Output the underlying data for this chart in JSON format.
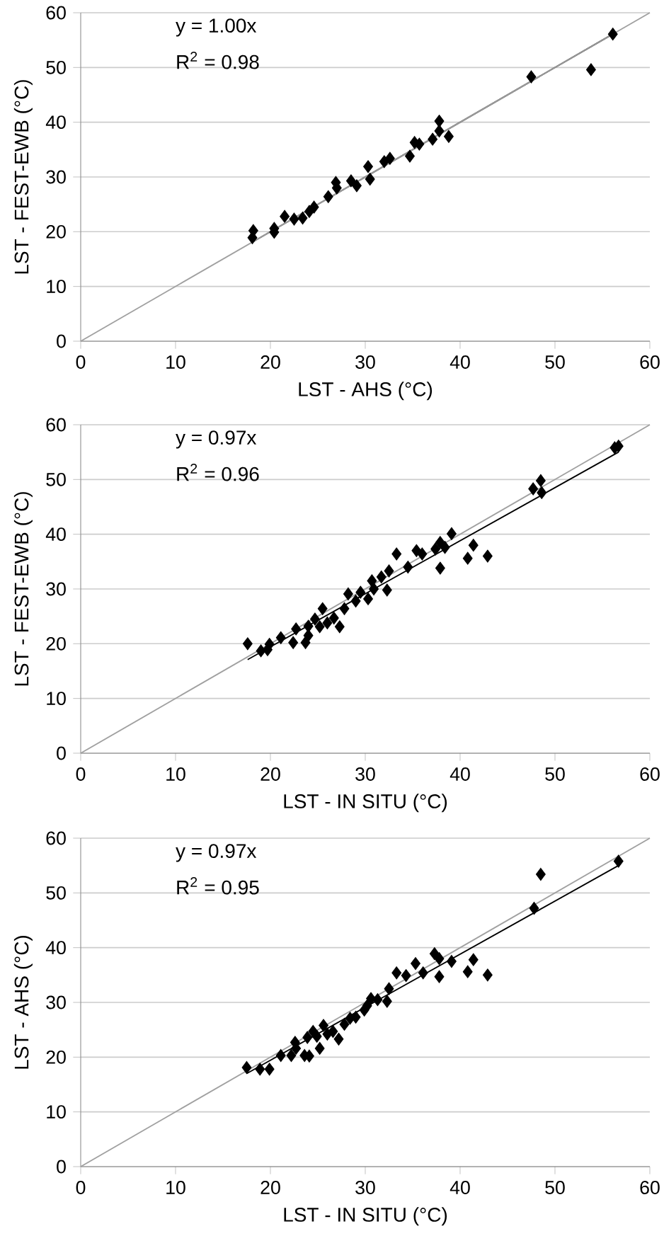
{
  "chart_data": [
    {
      "type": "scatter",
      "xlabel": "LST - AHS (°C)",
      "ylabel": "LST - FEST-EWB (°C)",
      "xlim": [
        0,
        60
      ],
      "ylim": [
        0,
        60
      ],
      "xticks": [
        0,
        10,
        20,
        30,
        40,
        50,
        60
      ],
      "yticks": [
        0,
        10,
        20,
        30,
        40,
        50,
        60
      ],
      "grid": "y",
      "marker": "diamond",
      "annotations": [
        "y = 1.00x",
        "R$^{2}$ = 0.98"
      ],
      "series": [
        {
          "color": "#000000",
          "x": [
            18.2,
            18.1,
            20.4,
            20.4,
            21.5,
            22.5,
            23.4,
            24.1,
            24.6,
            26.1,
            26.9,
            27.0,
            28.5,
            29.1,
            30.3,
            30.5,
            32.0,
            32.6,
            34.7,
            35.2,
            35.7,
            37.1,
            37.8,
            37.8,
            38.8,
            47.5,
            53.8,
            56.1
          ],
          "values": [
            20.2,
            18.9,
            20.6,
            19.9,
            22.8,
            22.3,
            22.5,
            23.7,
            24.5,
            26.4,
            29.0,
            28.0,
            29.3,
            28.4,
            31.9,
            29.6,
            32.8,
            33.4,
            33.8,
            36.3,
            36.0,
            36.9,
            40.2,
            38.4,
            37.4,
            48.3,
            49.6,
            56.1
          ]
        },
        {
          "type": "line",
          "color": "#000000",
          "marker": "none",
          "x": [
            18.1,
            56.1
          ],
          "values": [
            18.1,
            56.1
          ]
        },
        {
          "type": "line",
          "color": "#a0a0a0",
          "marker": "none",
          "x": [
            0,
            60
          ],
          "values": [
            0,
            60
          ]
        }
      ]
    },
    {
      "type": "scatter",
      "xlabel": "LST - IN SITU (°C)",
      "ylabel": "LST - FEST-EWB (°C)",
      "xlim": [
        0,
        60
      ],
      "ylim": [
        0,
        60
      ],
      "xticks": [
        0,
        10,
        20,
        30,
        40,
        50,
        60
      ],
      "yticks": [
        0,
        10,
        20,
        30,
        40,
        50,
        60
      ],
      "grid": "y",
      "marker": "diamond",
      "annotations": [
        "y = 0.97x",
        "R$^{2}$ = 0.96"
      ],
      "series": [
        {
          "color": "#000000",
          "x": [
            17.6,
            19.0,
            19.7,
            19.9,
            21.1,
            22.4,
            22.7,
            23.7,
            24.0,
            24.0,
            24.7,
            25.2,
            25.5,
            26.0,
            26.7,
            27.3,
            27.8,
            28.2,
            29.0,
            29.5,
            30.3,
            30.7,
            30.9,
            31.7,
            32.3,
            32.5,
            33.3,
            34.5,
            35.4,
            36.0,
            37.4,
            37.9,
            37.9,
            38.4,
            39.1,
            40.8,
            41.4,
            42.9,
            47.7,
            48.5,
            48.6,
            56.3,
            56.7
          ],
          "values": [
            20.0,
            18.7,
            18.9,
            19.9,
            21.1,
            20.2,
            22.7,
            20.2,
            21.5,
            23.2,
            24.5,
            23.1,
            26.4,
            23.8,
            24.7,
            23.1,
            26.4,
            29.1,
            27.8,
            29.4,
            28.2,
            31.5,
            30.0,
            32.2,
            29.8,
            33.3,
            36.4,
            34.0,
            37.0,
            36.4,
            37.3,
            38.5,
            33.8,
            37.6,
            40.1,
            35.6,
            38.0,
            36.0,
            48.3,
            49.8,
            47.6,
            55.8,
            56.1
          ]
        },
        {
          "type": "line",
          "color": "#000000",
          "marker": "none",
          "x": [
            17.6,
            56.7
          ],
          "values": [
            17.1,
            55.0
          ]
        },
        {
          "type": "line",
          "color": "#a0a0a0",
          "marker": "none",
          "x": [
            0,
            60
          ],
          "values": [
            0,
            60
          ]
        }
      ]
    },
    {
      "type": "scatter",
      "xlabel": "LST - IN SITU (°C)",
      "ylabel": "LST - AHS (°C)",
      "xlim": [
        0,
        60
      ],
      "ylim": [
        0,
        60
      ],
      "xticks": [
        0,
        10,
        20,
        30,
        40,
        50,
        60
      ],
      "yticks": [
        0,
        10,
        20,
        30,
        40,
        50,
        60
      ],
      "grid": "y",
      "marker": "diamond",
      "annotations": [
        "y = 0.97x",
        "R$^{2}$ = 0.95"
      ],
      "series": [
        {
          "color": "#000000",
          "x": [
            17.5,
            18.9,
            19.7,
            19.9,
            21.1,
            22.2,
            22.6,
            22.7,
            23.6,
            24.1,
            23.9,
            24.5,
            24.9,
            25.2,
            25.6,
            26.0,
            26.6,
            27.2,
            27.8,
            28.4,
            29.0,
            29.9,
            30.2,
            30.6,
            31.3,
            32.3,
            32.5,
            33.3,
            34.3,
            35.3,
            36.1,
            37.3,
            37.8,
            37.8,
            39.1,
            40.8,
            41.4,
            42.9,
            47.8,
            48.5,
            56.7
          ],
          "values": [
            18.1,
            17.8,
            null,
            17.8,
            20.3,
            20.3,
            22.7,
            21.6,
            20.3,
            20.2,
            23.6,
            24.7,
            23.8,
            21.6,
            25.8,
            24.2,
            24.7,
            23.3,
            26.0,
            27.1,
            27.3,
            28.6,
            29.4,
            30.7,
            30.5,
            30.2,
            32.5,
            35.4,
            34.9,
            37.1,
            35.4,
            38.9,
            34.7,
            38.0,
            37.5,
            35.6,
            37.8,
            35.0,
            47.2,
            53.4,
            55.8
          ]
        },
        {
          "type": "line",
          "color": "#000000",
          "marker": "none",
          "x": [
            17.5,
            56.7
          ],
          "values": [
            17.0,
            55.0
          ]
        },
        {
          "type": "line",
          "color": "#a0a0a0",
          "marker": "none",
          "x": [
            0,
            60
          ],
          "values": [
            0,
            60
          ]
        }
      ]
    }
  ]
}
